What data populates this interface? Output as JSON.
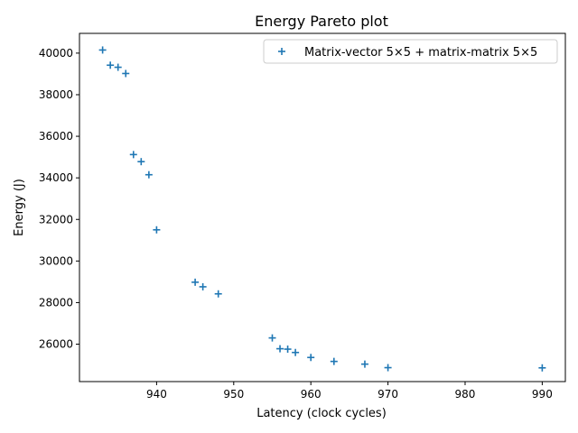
{
  "chart_data": {
    "type": "scatter",
    "title": "Energy Pareto plot",
    "xlabel": "Latency (clock cycles)",
    "ylabel": "Energy (J)",
    "xlim": [
      930,
      993
    ],
    "ylim": [
      24200,
      40950
    ],
    "xticks": [
      940,
      950,
      960,
      970,
      980,
      990
    ],
    "yticks": [
      26000,
      28000,
      30000,
      32000,
      34000,
      36000,
      38000,
      40000
    ],
    "marker": "+",
    "legend_position": "upper right",
    "series": [
      {
        "name": "Matrix-vector 5×5 + matrix-matrix 5×5",
        "color": "#1f77b4",
        "points": [
          [
            933,
            40150
          ],
          [
            934,
            39420
          ],
          [
            935,
            39320
          ],
          [
            936,
            39020
          ],
          [
            937,
            35120
          ],
          [
            938,
            34780
          ],
          [
            939,
            34150
          ],
          [
            940,
            31500
          ],
          [
            945,
            28980
          ],
          [
            946,
            28760
          ],
          [
            948,
            28420
          ],
          [
            955,
            26300
          ],
          [
            956,
            25780
          ],
          [
            957,
            25760
          ],
          [
            958,
            25600
          ],
          [
            960,
            25360
          ],
          [
            963,
            25170
          ],
          [
            967,
            25040
          ],
          [
            970,
            24870
          ],
          [
            990,
            24860
          ]
        ]
      }
    ]
  }
}
